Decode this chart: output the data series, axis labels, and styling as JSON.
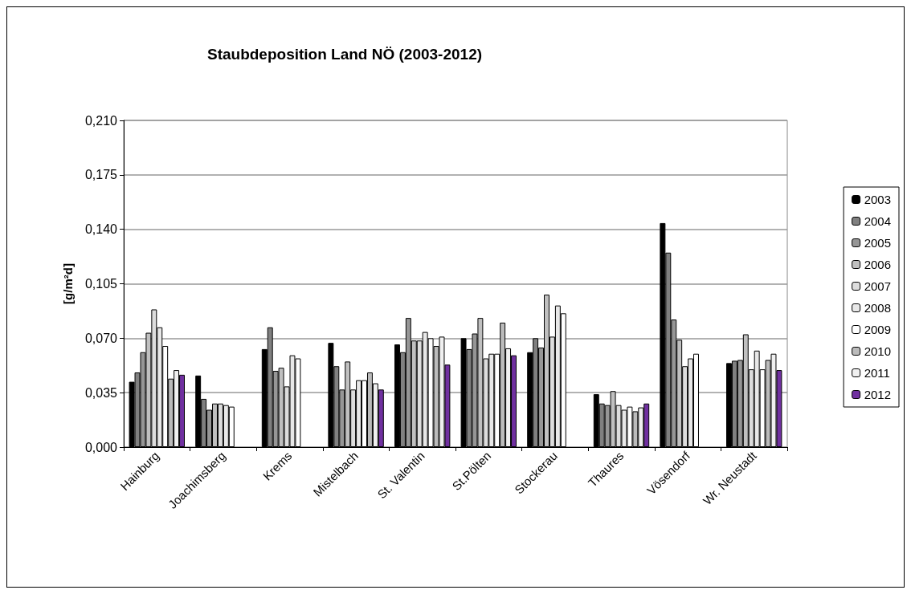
{
  "chart_data": {
    "type": "bar",
    "title": "Staubdeposition Land NÖ (2003-2012)",
    "ylabel": "[g/m²d]",
    "categories": [
      "Hainburg",
      "Joachimsberg",
      "Krems",
      "Mistelbach",
      "St. Valentin",
      "St.Pölten",
      "Stockerau",
      "Thaures",
      "Vösendorf",
      "Wr. Neustadt"
    ],
    "ylim": [
      0,
      0.21
    ],
    "yticks": [
      {
        "value": 0,
        "label": "0,000"
      },
      {
        "value": 0.035,
        "label": "0,035"
      },
      {
        "value": 0.07,
        "label": "0,070"
      },
      {
        "value": 0.105,
        "label": "0,105"
      },
      {
        "value": 0.14,
        "label": "0,140"
      },
      {
        "value": 0.175,
        "label": "0,175"
      },
      {
        "value": 0.21,
        "label": "0,210"
      }
    ],
    "grid": "y",
    "legend": "right",
    "series": [
      {
        "name": "2003",
        "color": "#000000",
        "values": [
          0.042,
          0.046,
          0.063,
          0.067,
          0.066,
          0.07,
          0.061,
          0.034,
          0.144,
          0.054
        ]
      },
      {
        "name": "2004",
        "color": "#808080",
        "values": [
          0.048,
          0.031,
          0.077,
          0.052,
          0.061,
          0.063,
          0.07,
          0.028,
          0.125,
          0.0555
        ]
      },
      {
        "name": "2005",
        "color": "#969696",
        "values": [
          0.061,
          0.024,
          0.049,
          0.037,
          0.083,
          0.073,
          0.064,
          0.027,
          0.082,
          0.056
        ]
      },
      {
        "name": "2006",
        "color": "#c0c0c0",
        "values": [
          0.0735,
          0.028,
          0.051,
          0.055,
          0.0685,
          0.083,
          0.098,
          0.036,
          0.069,
          0.0725
        ]
      },
      {
        "name": "2007",
        "color": "#dddddd",
        "values": [
          0.0885,
          0.028,
          0.039,
          0.037,
          0.0685,
          0.057,
          0.071,
          0.027,
          0.052,
          0.05
        ]
      },
      {
        "name": "2008",
        "color": "#e8e8e8",
        "values": [
          0.077,
          0.027,
          0.059,
          0.043,
          0.074,
          0.06,
          0.091,
          0.024,
          0.057,
          0.062
        ]
      },
      {
        "name": "2009",
        "color": "#ffffff",
        "values": [
          0.065,
          0.026,
          0.057,
          0.043,
          0.07,
          0.06,
          0.086,
          0.026,
          0.06,
          0.05
        ]
      },
      {
        "name": "2010",
        "color": "#bbbbbb",
        "values": [
          0.044,
          null,
          null,
          0.048,
          0.065,
          0.08,
          null,
          0.023,
          null,
          0.056
        ]
      },
      {
        "name": "2011",
        "color": "#f0f0f0",
        "values": [
          0.0495,
          null,
          null,
          0.041,
          0.071,
          0.0635,
          null,
          0.0255,
          null,
          0.06
        ]
      },
      {
        "name": "2012",
        "color": "#7030a0",
        "values": [
          0.0465,
          null,
          null,
          0.037,
          0.053,
          0.059,
          null,
          0.028,
          null,
          0.0495
        ]
      }
    ]
  }
}
